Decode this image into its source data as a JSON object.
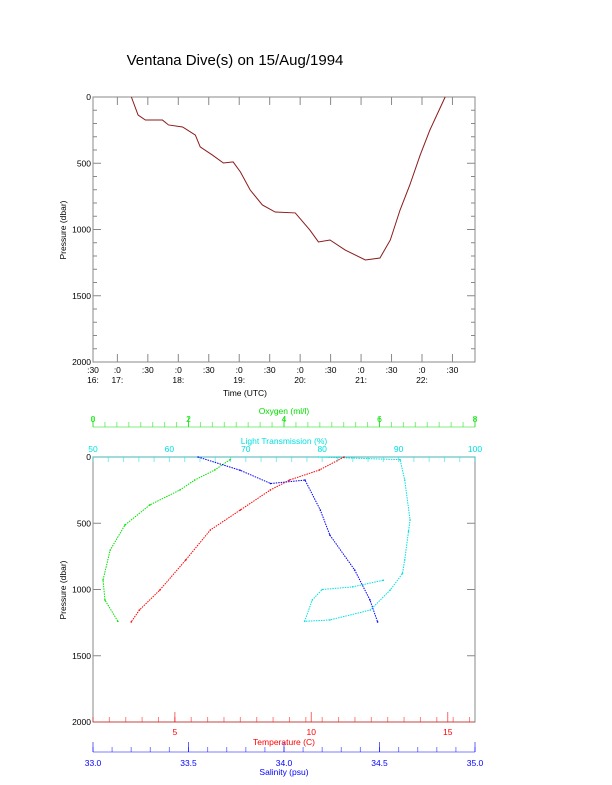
{
  "chart_data": [
    {
      "type": "line",
      "title": "Ventana Dive(s) on 15/Aug/1994",
      "xlabel": "Time (UTC)",
      "ylabel": "Pressure (dbar)",
      "xlim": [
        16.6,
        22.87
      ],
      "ylim": [
        2000,
        0
      ],
      "yticks": [
        "0",
        "500",
        "1000",
        "1500",
        "2000"
      ],
      "xticks": [
        {
          "t": 16.6,
          "top": ":30",
          "bottom": "16:"
        },
        {
          "t": 17.0,
          "top": ":0",
          "bottom": "17:"
        },
        {
          "t": 17.5,
          "top": ":30",
          "bottom": ""
        },
        {
          "t": 18.0,
          "top": ":0",
          "bottom": "18:"
        },
        {
          "t": 18.5,
          "top": ":30",
          "bottom": ""
        },
        {
          "t": 19.0,
          "top": ":0",
          "bottom": "19:"
        },
        {
          "t": 19.5,
          "top": ":30",
          "bottom": ""
        },
        {
          "t": 20.0,
          "top": ":0",
          "bottom": "20:"
        },
        {
          "t": 20.5,
          "top": ":30",
          "bottom": ""
        },
        {
          "t": 21.0,
          "top": ":0",
          "bottom": "21:"
        },
        {
          "t": 21.5,
          "top": ":30",
          "bottom": ""
        },
        {
          "t": 22.0,
          "top": ":0",
          "bottom": "22:"
        },
        {
          "t": 22.5,
          "top": ":30",
          "bottom": ""
        }
      ],
      "color": "#8b1a1a",
      "series": [
        {
          "name": "Pressure",
          "x": [
            17.23,
            17.34,
            17.46,
            17.74,
            17.84,
            18.07,
            18.28,
            18.36,
            18.56,
            18.74,
            18.9,
            19.02,
            19.18,
            19.38,
            19.59,
            19.92,
            20.16,
            20.3,
            20.49,
            20.74,
            21.07,
            21.31,
            21.48,
            21.64,
            21.8,
            21.97,
            22.13,
            22.38
          ],
          "y": [
            0,
            136,
            174,
            174,
            211,
            226,
            287,
            377,
            438,
            498,
            490,
            566,
            702,
            815,
            868,
            875,
            1004,
            1094,
            1079,
            1155,
            1230,
            1215,
            1079,
            853,
            664,
            438,
            249,
            0
          ]
        }
      ]
    },
    {
      "type": "scatter",
      "ylabel": "Pressure (dbar)",
      "ylim": [
        2000,
        0
      ],
      "yticks": [
        "0",
        "500",
        "1000",
        "1500",
        "2000"
      ],
      "axes": [
        {
          "name": "Oxygen (ml/l)",
          "color": "#00e000",
          "lim": [
            0,
            8
          ],
          "ticks": [
            "0",
            "2",
            "4",
            "6",
            "8"
          ],
          "tickvals": [
            0,
            2,
            4,
            6,
            8
          ]
        },
        {
          "name": "Light Transmission (%)",
          "color": "#00e0e0",
          "lim": [
            50,
            100
          ],
          "ticks": [
            "50",
            "60",
            "70",
            "80",
            "90",
            "100"
          ],
          "tickvals": [
            50,
            60,
            70,
            80,
            90,
            100
          ]
        },
        {
          "name": "Temperature (C)",
          "color": "#ff0000",
          "lim": [
            2,
            16
          ],
          "ticks": [
            "5",
            "10",
            "15"
          ],
          "tickvals": [
            5,
            10,
            15
          ]
        },
        {
          "name": "Salinity (psu)",
          "color": "#0000ff",
          "lim": [
            33,
            35
          ],
          "ticks": [
            "33.0",
            "33.5",
            "34.0",
            "34.5",
            "35.0"
          ],
          "tickvals": [
            33,
            33.5,
            34,
            34.5,
            35
          ]
        }
      ],
      "series": [
        {
          "name": "Oxygen",
          "axis": 0,
          "x": [
            2.87,
            2.55,
            2.13,
            1.82,
            1.19,
            0.67,
            0.36,
            0.21,
            0.25,
            0.52
          ],
          "y": [
            20,
            98,
            174,
            249,
            362,
            513,
            702,
            928,
            1079,
            1240
          ]
        },
        {
          "name": "Light Transmission",
          "axis": 1,
          "x": [
            79.5,
            90.2,
            90.8,
            91.5,
            91.3,
            90.8,
            90.5,
            88.9,
            86.3,
            81,
            77.7,
            78.7,
            80,
            84,
            88
          ],
          "y": [
            0,
            20,
            174,
            475,
            560,
            777,
            880,
            1004,
            1155,
            1230,
            1240,
            1079,
            1000,
            980,
            930
          ]
        },
        {
          "name": "Temperature",
          "axis": 2,
          "x": [
            11.2,
            10.3,
            9.2,
            8.5,
            7.4,
            6.3,
            5.4,
            4.45,
            3.7,
            3.4
          ],
          "y": [
            0,
            98,
            174,
            249,
            400,
            551,
            777,
            1004,
            1155,
            1245
          ]
        },
        {
          "name": "Salinity",
          "axis": 3,
          "x": [
            33.55,
            33.77,
            33.93,
            34.11,
            34.19,
            34.24,
            34.37,
            34.45,
            34.49
          ],
          "y": [
            0,
            100,
            200,
            174,
            400,
            589,
            853,
            1079,
            1245
          ]
        }
      ]
    }
  ]
}
